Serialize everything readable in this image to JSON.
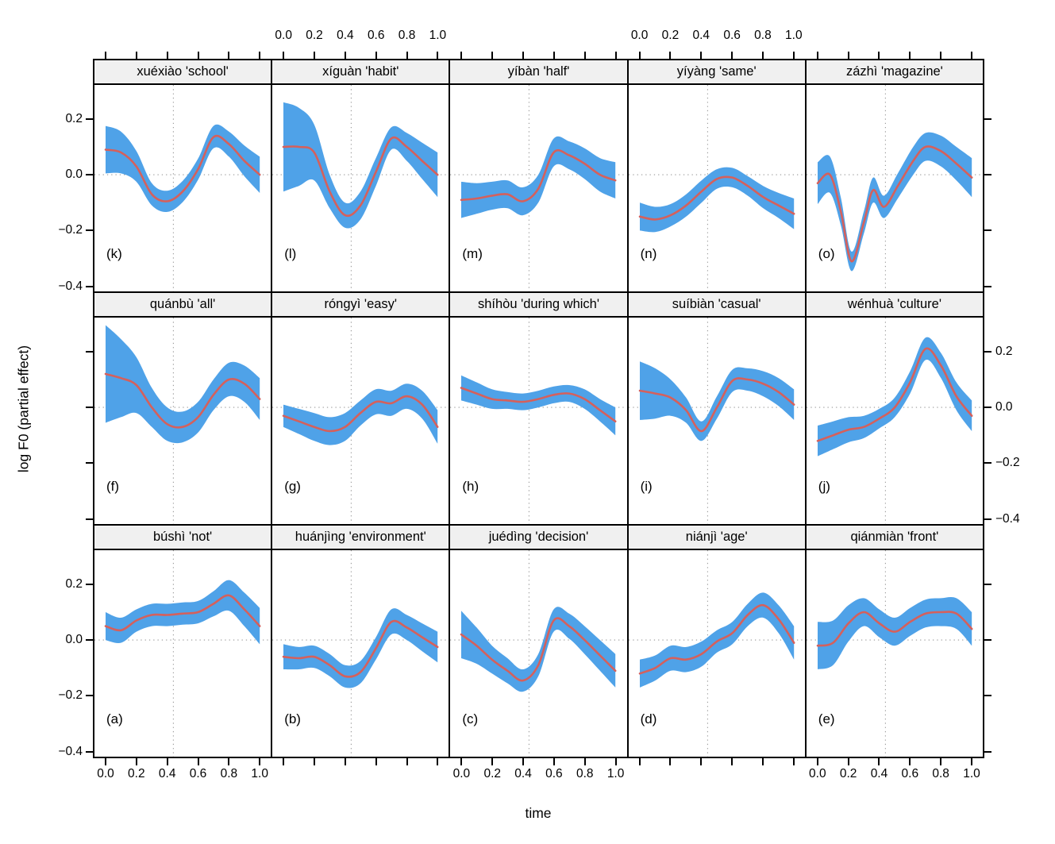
{
  "axes": {
    "x_title": "time",
    "y_title": "log F0 (partial effect)",
    "x_tick_labels": [
      "0.0",
      "0.2",
      "0.4",
      "0.6",
      "0.8",
      "1.0"
    ],
    "y_tick_labels": [
      "0.2",
      "0.0",
      "−0.2",
      "−0.4"
    ]
  },
  "chart_data": {
    "type": "line",
    "description": "Trellis of GAM smooths: red mean curve with blue confidence band per word panel",
    "xlabel": "time",
    "ylabel": "log F0 (partial effect)",
    "xlim": [
      0,
      1
    ],
    "ylim": [
      -0.418,
      0.322
    ],
    "x_ticks": [
      0,
      0.2,
      0.4,
      0.6,
      0.8,
      1.0
    ],
    "y_ticks": [
      0.2,
      0.0,
      -0.2,
      -0.4
    ],
    "grid": {
      "h_line_y": 0.0,
      "v_line_x": 0.44,
      "style": "dotted"
    },
    "layout": {
      "rows": 3,
      "cols": 5,
      "top_label_cols": [
        1,
        3
      ],
      "bottom_label_cols": [
        0,
        2,
        4
      ],
      "left_label_rows": [
        0,
        2
      ],
      "right_label_rows": [
        1
      ]
    },
    "band_color": "#4FA2E8",
    "line_color": "#D5605C",
    "strip_bg": "#F0F0F0",
    "panels": [
      {
        "letter_label": "(k)",
        "title": "xuéxiào 'school'",
        "row": 0,
        "col": 0,
        "x": [
          0,
          0.1,
          0.2,
          0.3,
          0.4,
          0.5,
          0.6,
          0.7,
          0.8,
          0.9,
          1
        ],
        "y": [
          0.09,
          0.08,
          0.03,
          -0.07,
          -0.095,
          -0.06,
          0.02,
          0.135,
          0.11,
          0.05,
          0.0
        ],
        "hw": [
          0.085,
          0.075,
          0.055,
          0.04,
          0.038,
          0.038,
          0.038,
          0.04,
          0.045,
          0.055,
          0.065
        ]
      },
      {
        "letter_label": "(l)",
        "title": "xíguàn 'habit'",
        "row": 0,
        "col": 1,
        "x": [
          0,
          0.1,
          0.2,
          0.3,
          0.4,
          0.5,
          0.6,
          0.7,
          0.8,
          0.9,
          1
        ],
        "y": [
          0.1,
          0.1,
          0.08,
          -0.06,
          -0.145,
          -0.11,
          0.01,
          0.13,
          0.1,
          0.05,
          0.0
        ],
        "hw": [
          0.16,
          0.14,
          0.1,
          0.06,
          0.045,
          0.05,
          0.05,
          0.04,
          0.05,
          0.065,
          0.08
        ]
      },
      {
        "letter_label": "(m)",
        "title": "yíbàn 'half'",
        "row": 0,
        "col": 2,
        "x": [
          0,
          0.1,
          0.2,
          0.3,
          0.4,
          0.5,
          0.6,
          0.7,
          0.8,
          0.9,
          1
        ],
        "y": [
          -0.09,
          -0.085,
          -0.075,
          -0.07,
          -0.095,
          -0.05,
          0.08,
          0.07,
          0.04,
          0.0,
          -0.02
        ],
        "hw": [
          0.065,
          0.055,
          0.05,
          0.05,
          0.05,
          0.05,
          0.05,
          0.05,
          0.055,
          0.06,
          0.065
        ]
      },
      {
        "letter_label": "(n)",
        "title": "yíyàng 'same'",
        "row": 0,
        "col": 3,
        "x": [
          0,
          0.1,
          0.2,
          0.3,
          0.4,
          0.5,
          0.6,
          0.7,
          0.8,
          0.9,
          1
        ],
        "y": [
          -0.15,
          -0.16,
          -0.145,
          -0.11,
          -0.06,
          -0.015,
          -0.01,
          -0.04,
          -0.08,
          -0.11,
          -0.14
        ],
        "hw": [
          0.05,
          0.045,
          0.04,
          0.04,
          0.04,
          0.035,
          0.035,
          0.035,
          0.04,
          0.045,
          0.055
        ]
      },
      {
        "letter_label": "(o)",
        "title": "zázhì 'magazine'",
        "row": 0,
        "col": 4,
        "x": [
          0,
          0.08,
          0.15,
          0.22,
          0.3,
          0.36,
          0.43,
          0.52,
          0.62,
          0.7,
          0.8,
          0.9,
          1
        ],
        "y": [
          -0.03,
          0.0,
          -0.13,
          -0.31,
          -0.17,
          -0.055,
          -0.115,
          -0.04,
          0.05,
          0.1,
          0.085,
          0.04,
          -0.01
        ],
        "hw": [
          0.075,
          0.065,
          0.05,
          0.035,
          0.04,
          0.045,
          0.04,
          0.045,
          0.05,
          0.05,
          0.055,
          0.06,
          0.07
        ]
      },
      {
        "letter_label": "(f)",
        "title": "quánbù 'all'",
        "row": 1,
        "col": 0,
        "x": [
          0,
          0.1,
          0.2,
          0.3,
          0.4,
          0.5,
          0.6,
          0.7,
          0.8,
          0.9,
          1
        ],
        "y": [
          0.12,
          0.105,
          0.08,
          0.0,
          -0.06,
          -0.07,
          -0.035,
          0.045,
          0.1,
          0.085,
          0.03
        ],
        "hw": [
          0.175,
          0.14,
          0.1,
          0.07,
          0.06,
          0.055,
          0.055,
          0.055,
          0.06,
          0.065,
          0.075
        ]
      },
      {
        "letter_label": "(g)",
        "title": "róngyì 'easy'",
        "row": 1,
        "col": 1,
        "x": [
          0,
          0.1,
          0.2,
          0.3,
          0.4,
          0.5,
          0.6,
          0.7,
          0.8,
          0.9,
          1
        ],
        "y": [
          -0.03,
          -0.05,
          -0.07,
          -0.085,
          -0.07,
          -0.02,
          0.02,
          0.015,
          0.04,
          0.01,
          -0.07
        ],
        "hw": [
          0.04,
          0.045,
          0.05,
          0.05,
          0.05,
          0.045,
          0.045,
          0.045,
          0.045,
          0.05,
          0.06
        ]
      },
      {
        "letter_label": "(h)",
        "title": "shíhòu 'during which'",
        "row": 1,
        "col": 2,
        "x": [
          0,
          0.1,
          0.2,
          0.3,
          0.4,
          0.5,
          0.6,
          0.7,
          0.8,
          0.9,
          1
        ],
        "y": [
          0.07,
          0.05,
          0.03,
          0.025,
          0.02,
          0.03,
          0.045,
          0.05,
          0.03,
          -0.01,
          -0.05
        ],
        "hw": [
          0.045,
          0.04,
          0.035,
          0.03,
          0.03,
          0.03,
          0.03,
          0.03,
          0.035,
          0.04,
          0.05
        ]
      },
      {
        "letter_label": "(i)",
        "title": "suíbiàn 'casual'",
        "row": 1,
        "col": 3,
        "x": [
          0,
          0.1,
          0.2,
          0.3,
          0.4,
          0.5,
          0.6,
          0.7,
          0.8,
          0.9,
          1
        ],
        "y": [
          0.06,
          0.05,
          0.035,
          -0.01,
          -0.085,
          0.0,
          0.095,
          0.1,
          0.085,
          0.055,
          0.01
        ],
        "hw": [
          0.105,
          0.09,
          0.065,
          0.045,
          0.035,
          0.04,
          0.04,
          0.04,
          0.045,
          0.05,
          0.055
        ]
      },
      {
        "letter_label": "(j)",
        "title": "wénhuà 'culture'",
        "row": 1,
        "col": 4,
        "x": [
          0,
          0.1,
          0.2,
          0.3,
          0.4,
          0.5,
          0.6,
          0.7,
          0.8,
          0.9,
          1
        ],
        "y": [
          -0.12,
          -0.1,
          -0.08,
          -0.07,
          -0.04,
          0.0,
          0.09,
          0.21,
          0.15,
          0.04,
          -0.03
        ],
        "hw": [
          0.055,
          0.05,
          0.045,
          0.04,
          0.035,
          0.035,
          0.04,
          0.04,
          0.045,
          0.05,
          0.055
        ]
      },
      {
        "letter_label": "(a)",
        "title": "búshì 'not'",
        "row": 2,
        "col": 0,
        "x": [
          0,
          0.1,
          0.2,
          0.3,
          0.4,
          0.5,
          0.6,
          0.7,
          0.8,
          0.9,
          1
        ],
        "y": [
          0.05,
          0.035,
          0.07,
          0.09,
          0.09,
          0.095,
          0.1,
          0.13,
          0.16,
          0.11,
          0.05
        ],
        "hw": [
          0.05,
          0.045,
          0.04,
          0.04,
          0.04,
          0.04,
          0.04,
          0.045,
          0.055,
          0.06,
          0.065
        ]
      },
      {
        "letter_label": "(b)",
        "title": "huánjìng 'environment'",
        "row": 2,
        "col": 1,
        "x": [
          0,
          0.1,
          0.2,
          0.3,
          0.4,
          0.5,
          0.6,
          0.7,
          0.8,
          0.9,
          1
        ],
        "y": [
          -0.06,
          -0.065,
          -0.06,
          -0.09,
          -0.13,
          -0.115,
          -0.03,
          0.065,
          0.045,
          0.01,
          -0.025
        ],
        "hw": [
          0.045,
          0.04,
          0.04,
          0.04,
          0.04,
          0.04,
          0.04,
          0.045,
          0.045,
          0.05,
          0.055
        ]
      },
      {
        "letter_label": "(c)",
        "title": "juédìng 'decision'",
        "row": 2,
        "col": 2,
        "x": [
          0,
          0.1,
          0.2,
          0.3,
          0.4,
          0.5,
          0.6,
          0.7,
          0.8,
          0.9,
          1
        ],
        "y": [
          0.02,
          -0.02,
          -0.07,
          -0.11,
          -0.145,
          -0.09,
          0.07,
          0.05,
          0.0,
          -0.055,
          -0.11
        ],
        "hw": [
          0.085,
          0.065,
          0.05,
          0.045,
          0.04,
          0.04,
          0.04,
          0.045,
          0.05,
          0.055,
          0.06
        ]
      },
      {
        "letter_label": "(d)",
        "title": "niánjì 'age'",
        "row": 2,
        "col": 3,
        "x": [
          0,
          0.1,
          0.2,
          0.3,
          0.4,
          0.5,
          0.6,
          0.7,
          0.8,
          0.9,
          1
        ],
        "y": [
          -0.12,
          -0.1,
          -0.065,
          -0.07,
          -0.05,
          -0.005,
          0.025,
          0.09,
          0.125,
          0.075,
          -0.01
        ],
        "hw": [
          0.05,
          0.045,
          0.045,
          0.045,
          0.045,
          0.04,
          0.04,
          0.04,
          0.045,
          0.05,
          0.06
        ]
      },
      {
        "letter_label": "(e)",
        "title": "qiánmiàn 'front'",
        "row": 2,
        "col": 4,
        "x": [
          0,
          0.1,
          0.2,
          0.3,
          0.4,
          0.5,
          0.6,
          0.7,
          0.8,
          0.9,
          1
        ],
        "y": [
          -0.02,
          -0.01,
          0.06,
          0.1,
          0.06,
          0.03,
          0.065,
          0.095,
          0.1,
          0.095,
          0.04
        ],
        "hw": [
          0.085,
          0.08,
          0.065,
          0.05,
          0.05,
          0.05,
          0.05,
          0.05,
          0.05,
          0.055,
          0.06
        ]
      }
    ]
  }
}
